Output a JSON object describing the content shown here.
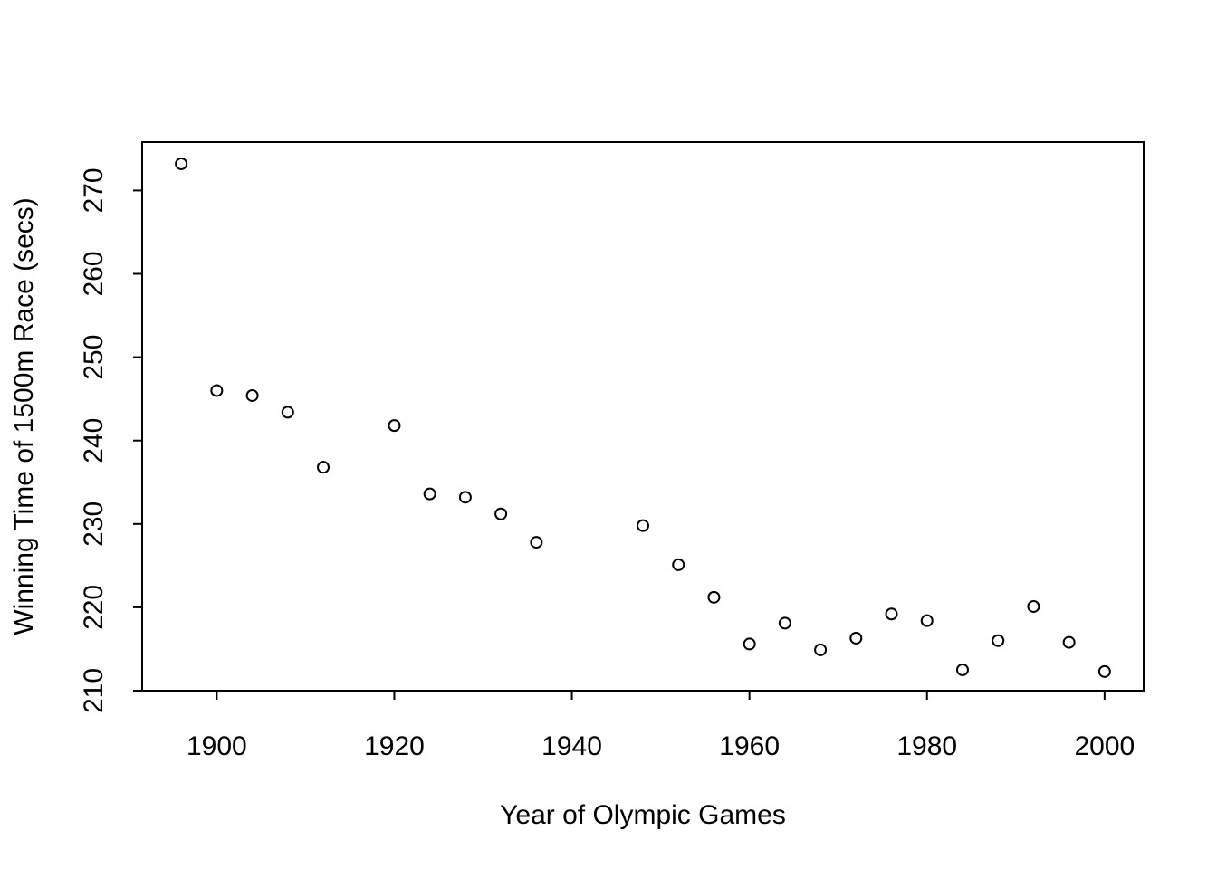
{
  "chart_data": {
    "type": "scatter",
    "title": "",
    "xlabel": "Year of Olympic Games",
    "ylabel": "Winning Time of 1500m Race (secs)",
    "xlim": [
      1891.6,
      2004.4
    ],
    "ylim": [
      210,
      275.8
    ],
    "x_ticks": [
      1900,
      1920,
      1940,
      1960,
      1980,
      2000
    ],
    "x_tick_labels": [
      "1900",
      "1920",
      "1940",
      "1960",
      "1980",
      "2000"
    ],
    "y_ticks": [
      210,
      220,
      230,
      240,
      250,
      260,
      270
    ],
    "y_tick_labels": [
      "210",
      "220",
      "230",
      "240",
      "250",
      "260",
      "270"
    ],
    "grid": false,
    "legend": "none",
    "marker": "open-circle",
    "series": [
      {
        "x": [
          1896,
          1900,
          1904,
          1908,
          1912,
          1920,
          1924,
          1928,
          1932,
          1936,
          1948,
          1952,
          1956,
          1960,
          1964,
          1968,
          1972,
          1976,
          1980,
          1984,
          1988,
          1992,
          1996,
          2000
        ],
        "y": [
          273.2,
          246.0,
          245.4,
          243.4,
          236.8,
          241.8,
          233.6,
          233.2,
          231.2,
          227.8,
          229.8,
          225.1,
          221.2,
          215.6,
          218.1,
          214.9,
          216.3,
          219.2,
          218.4,
          212.5,
          216.0,
          220.1,
          215.8,
          212.3
        ]
      }
    ]
  }
}
